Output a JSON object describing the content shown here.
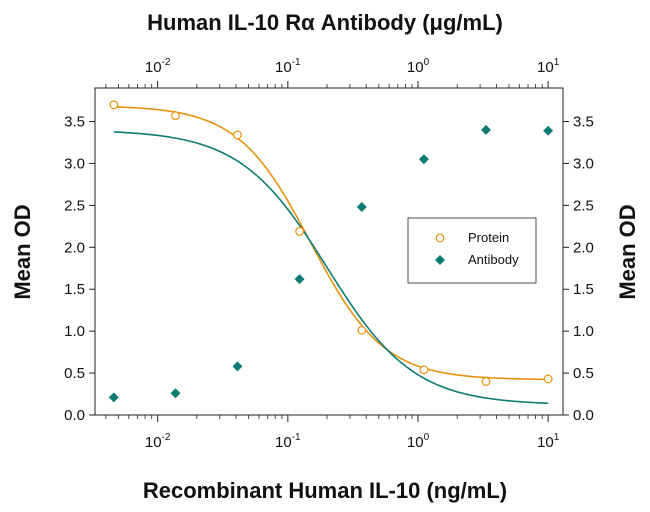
{
  "chart_data": {
    "type": "scatter",
    "title": "Human IL-10 Rα Antibody (μg/mL)",
    "xlabel": "Recombinant Human IL-10  (ng/mL)",
    "ylabel_left": "Mean OD",
    "ylabel_right": "Mean OD",
    "x_scale": "log",
    "xlim": [
      0.0033,
      13
    ],
    "ylim": [
      0,
      3.9
    ],
    "x_ticks": [
      {
        "value": 0.01,
        "base": "10",
        "exp": "-2"
      },
      {
        "value": 0.1,
        "base": "10",
        "exp": "-1"
      },
      {
        "value": 1,
        "base": "10",
        "exp": "0"
      },
      {
        "value": 10,
        "base": "10",
        "exp": "1"
      }
    ],
    "y_ticks": [
      "0.0",
      "0.5",
      "1.0",
      "1.5",
      "2.0",
      "2.5",
      "3.0",
      "3.5"
    ],
    "legend_position": "right-middle",
    "series": [
      {
        "name": "Protein",
        "marker": "open-circle",
        "color": "#E8920E",
        "x": [
          0.0046,
          0.0137,
          0.041,
          0.123,
          0.37,
          1.11,
          3.33,
          10
        ],
        "y": [
          3.7,
          3.57,
          3.34,
          2.19,
          1.01,
          0.54,
          0.4,
          0.43
        ],
        "fit": {
          "top": 3.69,
          "bottom": 0.42,
          "ec50": 0.15,
          "hill": 1.55
        }
      },
      {
        "name": "Antibody",
        "marker": "filled-diamond",
        "color": "#0E7C73",
        "x": [
          0.0046,
          0.0137,
          0.041,
          0.123,
          0.37,
          1.11,
          3.33,
          10
        ],
        "y": [
          0.21,
          0.26,
          0.58,
          1.62,
          2.48,
          3.05,
          3.4,
          3.39
        ],
        "fit": {
          "top": 3.4,
          "bottom": 0.12,
          "ec50": 0.2,
          "hill": 1.3
        }
      }
    ]
  }
}
